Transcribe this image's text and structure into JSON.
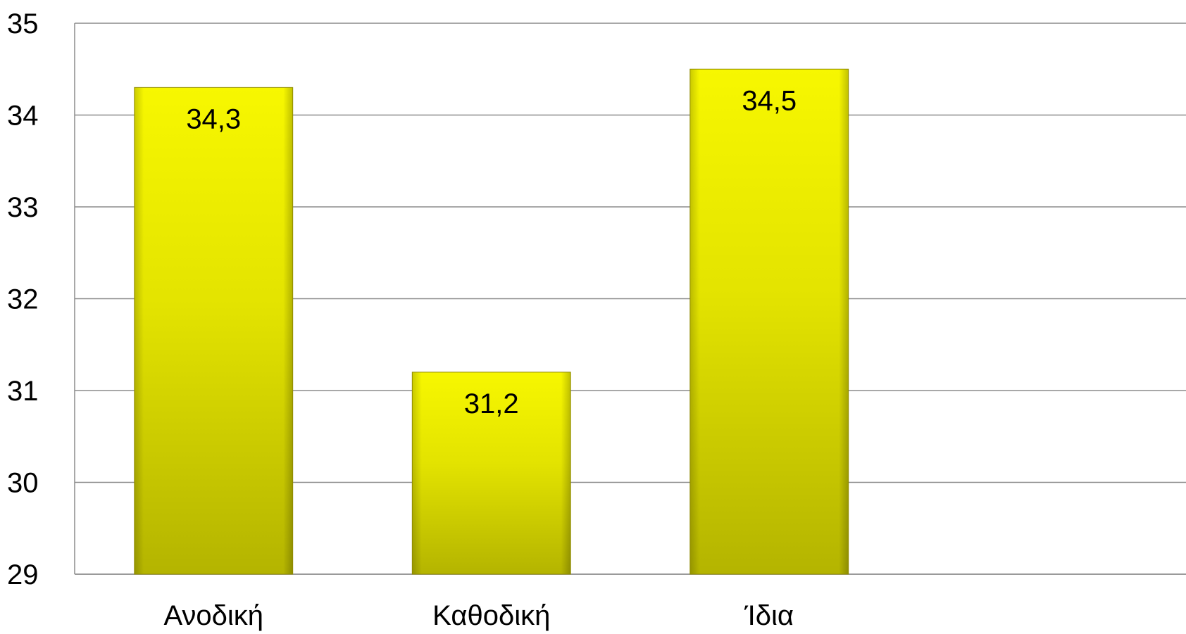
{
  "chart_data": {
    "type": "bar",
    "categories": [
      "Ανοδική",
      "Καθοδική",
      "Ίδια"
    ],
    "values": [
      34.3,
      31.2,
      34.5
    ],
    "data_labels": [
      "34,3",
      "31,2",
      "34,5"
    ],
    "title": "",
    "xlabel": "",
    "ylabel": "",
    "ylim": [
      29,
      35
    ],
    "yticks": [
      29,
      30,
      31,
      32,
      33,
      34,
      35
    ],
    "ytick_labels": [
      "29",
      "30",
      "31",
      "32",
      "33",
      "34",
      "35"
    ],
    "grid": true,
    "legend": "none",
    "colors": {
      "bar_top": "#f7f700",
      "bar_bottom": "#b4b400",
      "bar_edge": "#8f8a00",
      "grid": "#8c8c8c"
    }
  }
}
